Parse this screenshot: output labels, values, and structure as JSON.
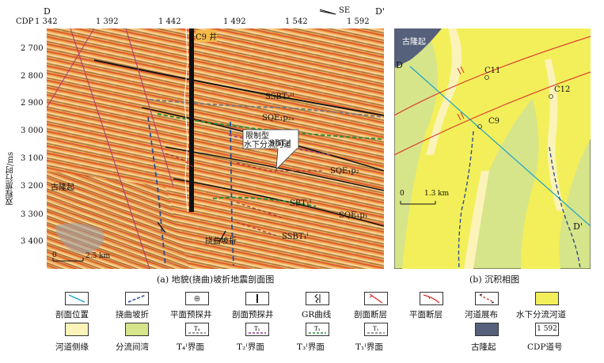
{
  "profile_header": {
    "left_letter": "D",
    "right_letter": "D'",
    "direction": "SE",
    "cdp_label": "CDP",
    "cdp_ticks": [
      "1 342",
      "1 392",
      "1 442",
      "1 492",
      "1 542",
      "1 592"
    ]
  },
  "y_axis": {
    "label": "双程旅行时/ms",
    "ticks": [
      "2 700",
      "2 800",
      "2 900",
      "3 000",
      "3 100",
      "3 200",
      "3 300",
      "3 400"
    ]
  },
  "seismic_annotations": {
    "well": "C9 井",
    "ssbt4": "SSBT₄ᴵᴵ",
    "sqe_p2x": "SQE₁p₂ₓ",
    "callout_line1": "限制型",
    "callout_line2": "水下分流河道",
    "sbt2": "SBT₂ᴵ",
    "sqe_p2": "SQE₁p₂",
    "sbt1": "SBT₁ᴵ",
    "sqe_p1": "SQE₁p₁",
    "ssbt1": "SSBT₁ᴵ",
    "paleo_uplift": "古隆起",
    "flexure_break": "挠曲坡折",
    "scale_zero": "0",
    "scale_text": "2.5 km"
  },
  "map_annotations": {
    "paleo_uplift": "古隆起",
    "D": "D",
    "D_prime": "D'",
    "C11": "C11",
    "C12": "C12",
    "C9": "C9",
    "scale_zero": "0",
    "scale_text": "1.3 km"
  },
  "captions": {
    "a": "(a) 地貌(挠曲)坡折地震剖面图",
    "b": "(b) 沉积相图"
  },
  "legend": [
    {
      "key": "profile-location",
      "label": "剖面位置"
    },
    {
      "key": "flexure-break",
      "label": "挠曲坡折"
    },
    {
      "key": "plan-well",
      "label": "平面预探井"
    },
    {
      "key": "section-well",
      "label": "剖面预探井"
    },
    {
      "key": "gr-curve",
      "label": "GR曲线"
    },
    {
      "key": "section-fault",
      "label": "剖面断层"
    },
    {
      "key": "plan-fault",
      "label": "平面断层"
    },
    {
      "key": "channel-spread",
      "label": "河道展布"
    },
    {
      "key": "underwater-channel",
      "label": "水下分流河道"
    },
    {
      "key": "channel-flank",
      "label": "河道侧缘"
    },
    {
      "key": "interdistributary-bay",
      "label": "分流间湾"
    },
    {
      "key": "t4-surface",
      "label": "T₄ᴵ界面"
    },
    {
      "key": "t2-surface",
      "label": "T₂ᴵ界面"
    },
    {
      "key": "t3-surface",
      "label": "T₃ᴵ界面"
    },
    {
      "key": "t1-surface",
      "label": "T₁ᴵ界面"
    },
    {
      "key": "paleo-uplift",
      "label": "古隆起"
    },
    {
      "key": "cdp-number",
      "label": "CDP道号",
      "box_text": "1 592"
    }
  ],
  "colors": {
    "map_yellow": "#f3ef5a",
    "map_green": "#d6e48a",
    "map_cream": "#fbf3b8",
    "uplift": "#55617a",
    "fault_red": "#d9302b",
    "profile_cyan": "#1aa3c9",
    "flexure_blue": "#2b4f8f"
  }
}
